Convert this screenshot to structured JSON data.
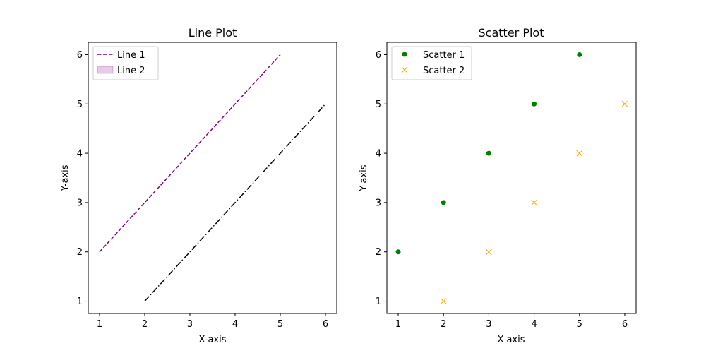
{
  "chart_data": [
    {
      "type": "line",
      "title": "Line Plot",
      "xlabel": "X-axis",
      "ylabel": "Y-axis",
      "xlim": [
        0.75,
        6.25
      ],
      "ylim": [
        0.75,
        6.25
      ],
      "xticks": [
        1,
        2,
        3,
        4,
        5,
        6
      ],
      "yticks": [
        1,
        2,
        3,
        4,
        5,
        6
      ],
      "grid": false,
      "legend": "top-left",
      "series": [
        {
          "name": "Line 1",
          "x": [
            1,
            2,
            3,
            4,
            5
          ],
          "y": [
            2,
            3,
            4,
            5,
            6
          ],
          "color": "#800080",
          "style": "dashed"
        },
        {
          "name": "",
          "x": [
            2,
            3,
            4,
            5,
            6
          ],
          "y": [
            1,
            2,
            3,
            4,
            5
          ],
          "color": "#000000",
          "style": "dashdot"
        }
      ],
      "legend_entries": [
        {
          "label": "Line 1",
          "kind": "dashed-line",
          "color": "#800080"
        },
        {
          "label": "Line 2",
          "kind": "patch",
          "color": "#800080"
        }
      ]
    },
    {
      "type": "scatter",
      "title": "Scatter Plot",
      "xlabel": "X-axis",
      "ylabel": "Y-axis",
      "xlim": [
        0.75,
        6.25
      ],
      "ylim": [
        0.75,
        6.25
      ],
      "xticks": [
        1,
        2,
        3,
        4,
        5,
        6
      ],
      "yticks": [
        1,
        2,
        3,
        4,
        5,
        6
      ],
      "grid": false,
      "legend": "top-left",
      "series": [
        {
          "name": "Scatter 1",
          "x": [
            1,
            2,
            3,
            4,
            5
          ],
          "y": [
            2,
            3,
            4,
            5,
            6
          ],
          "color": "#008000",
          "marker": "circle"
        },
        {
          "name": "Scatter 2",
          "x": [
            2,
            3,
            4,
            5,
            6
          ],
          "y": [
            1,
            2,
            3,
            4,
            5
          ],
          "color": "#ffa500",
          "marker": "x"
        }
      ]
    }
  ]
}
